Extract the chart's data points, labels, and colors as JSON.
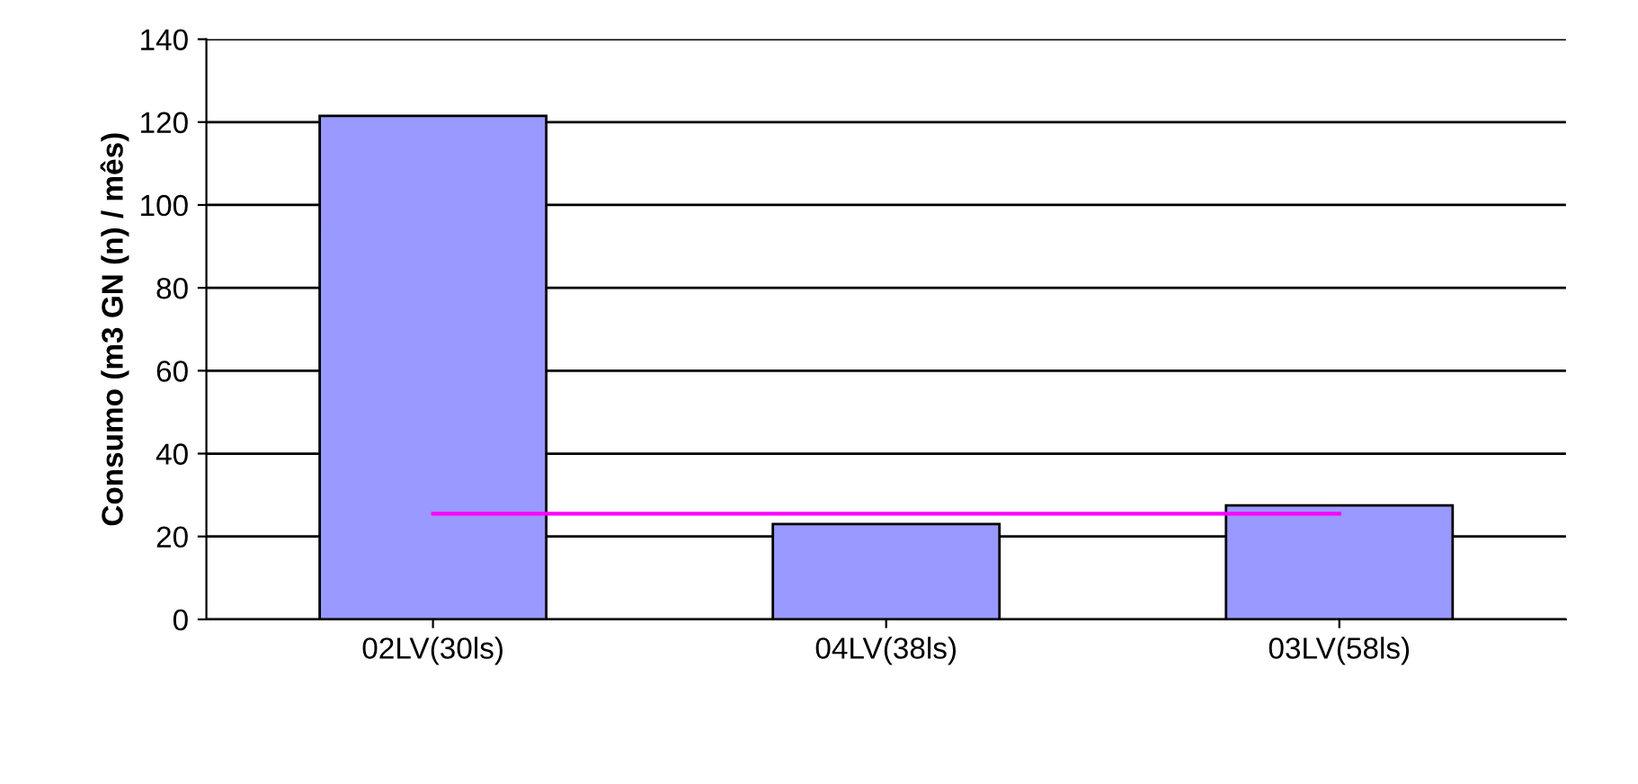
{
  "chart_data": {
    "type": "bar",
    "ylabel": "Consumo (m3 GN (n) / mês)",
    "categories": [
      "02LV(30ls)",
      "04LV(38ls)",
      "03LV(58ls)"
    ],
    "series": [
      {
        "color": "#9999ff",
        "values": [
          121.5,
          23,
          27.5
        ]
      },
      {
        "type": "line",
        "color": "#ff00ff",
        "values": [
          25.5,
          25.5,
          25.5
        ]
      }
    ],
    "ylim": [
      0,
      140
    ],
    "yticks": [
      0,
      20,
      40,
      60,
      80,
      100,
      120,
      140
    ],
    "grid": "y",
    "legend": false
  }
}
